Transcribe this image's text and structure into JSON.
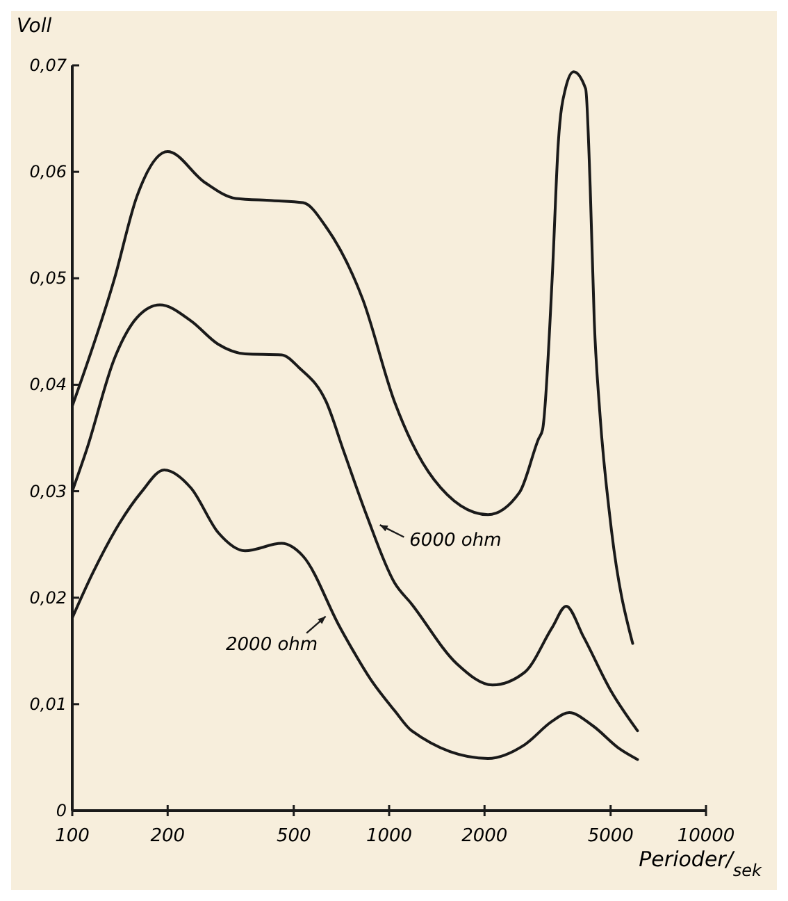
{
  "chart_data": {
    "type": "line",
    "xlabel": "Perioder/$_{sek}$",
    "ylabel": "Voll",
    "log": "x",
    "xlim": [
      100,
      10000
    ],
    "ylim": [
      0,
      0.07
    ],
    "xticks": [
      100,
      200,
      500,
      1000,
      2000,
      5000,
      10000
    ],
    "yticks": [
      {
        "value": 0,
        "label": "0"
      },
      {
        "value": 0.01,
        "label": "0,01"
      },
      {
        "value": 0.02,
        "label": "0,02"
      },
      {
        "value": 0.03,
        "label": "0,03"
      },
      {
        "value": 0.04,
        "label": "0,04"
      },
      {
        "value": 0.05,
        "label": "0,05"
      },
      {
        "value": 0.06,
        "label": "0,06"
      },
      {
        "value": 0.07,
        "label": "0,07"
      }
    ],
    "marker": "none",
    "line_style": "solid",
    "series": [
      {
        "color": "#1a1a1a",
        "x": [
          100,
          136,
          160,
          200,
          262,
          328,
          428,
          535,
          633,
          826,
          1040,
          1178,
          1385,
          2050,
          2580,
          2960,
          3050,
          3270,
          3420,
          3600,
          3820,
          4170,
          4310,
          4440,
          4620,
          5000,
          5870
        ],
        "values": [
          0.038,
          0.05,
          0.0577,
          0.0619,
          0.059,
          0.0575,
          0.0573,
          0.0571,
          0.0548,
          0.048,
          0.0384,
          0.0346,
          0.0311,
          0.0278,
          0.0299,
          0.0349,
          0.0358,
          0.05,
          0.0628,
          0.0678,
          0.0694,
          0.0678,
          0.0586,
          0.046,
          0.0375,
          0.027,
          0.0157
        ]
      },
      {
        "color": "#1a1a1a",
        "x": [
          100,
          111,
          136,
          160,
          189,
          237,
          289,
          351,
          458,
          520,
          633,
          720,
          850,
          1040,
          1178,
          1635,
          2120,
          2680,
          3270,
          3620,
          4110,
          5000,
          6080
        ],
        "values": [
          0.03,
          0.0339,
          0.0425,
          0.0463,
          0.0475,
          0.046,
          0.0438,
          0.0429,
          0.0428,
          0.0416,
          0.0384,
          0.0337,
          0.0277,
          0.0214,
          0.0194,
          0.0138,
          0.0118,
          0.013,
          0.0172,
          0.0192,
          0.0163,
          0.0113,
          0.0075
        ]
      },
      {
        "color": "#1a1a1a",
        "x": [
          100,
          116,
          141,
          165,
          195,
          237,
          289,
          351,
          458,
          535,
          700,
          880,
          1040,
          1178,
          2050,
          2680,
          3270,
          3700,
          4380,
          5340,
          6080
        ],
        "values": [
          0.0181,
          0.0223,
          0.027,
          0.0299,
          0.032,
          0.0303,
          0.0261,
          0.0244,
          0.0251,
          0.0239,
          0.0172,
          0.0122,
          0.0094,
          0.0075,
          0.0049,
          0.0062,
          0.0084,
          0.0092,
          0.008,
          0.0058,
          0.0048
        ]
      }
    ],
    "annotations": [
      {
        "text": "6000 ohm",
        "x": 910,
        "y": 0.027
      },
      {
        "text": "2000 ohm",
        "x": 645,
        "y": 0.0185
      }
    ]
  }
}
